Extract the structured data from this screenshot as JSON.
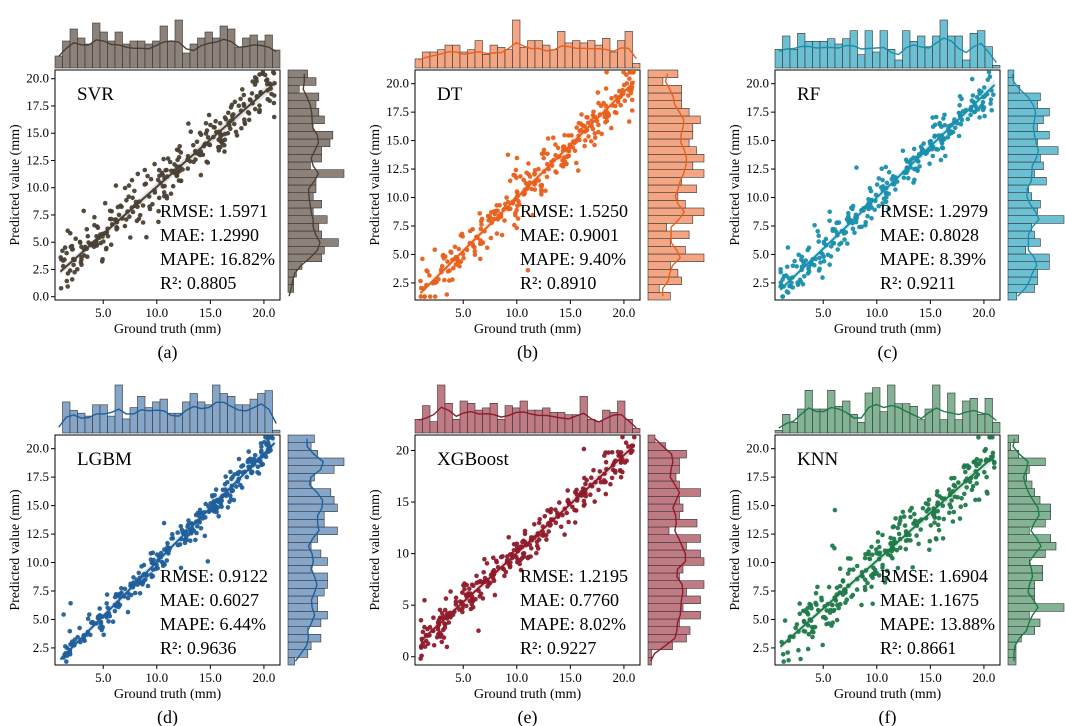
{
  "chart_data": [
    {
      "type": "scatter",
      "panel_label": "(a)",
      "title": "SVR",
      "xlabel": "Ground truth (mm)",
      "ylabel": "Predicted value (mm)",
      "xlim": [
        0.5,
        21.5
      ],
      "ylim": [
        -0.3,
        20.8
      ],
      "xticks": [
        "5.0",
        "10.0",
        "15.0",
        "20.0"
      ],
      "yticks": [
        "0.0",
        "2.5",
        "5.0",
        "7.5",
        "10.0",
        "12.5",
        "15.0",
        "17.5",
        "20.0"
      ],
      "color": "#4a4034",
      "hist_color": "#8c8279",
      "fit_line": {
        "x": [
          1,
          21
        ],
        "y": [
          2.3,
          19.6
        ]
      },
      "metrics": [
        "RMSE: 1.5971",
        "MAE: 1.2990",
        "MAPE: 16.82%",
        "R²: 0.8805"
      ]
    },
    {
      "type": "scatter",
      "panel_label": "(b)",
      "title": "DT",
      "xlabel": "Ground truth (mm)",
      "ylabel": "Predicted value (mm)",
      "xlim": [
        0.5,
        21.5
      ],
      "ylim": [
        1.0,
        21.2
      ],
      "xticks": [
        "5.0",
        "10.0",
        "15.0",
        "20.0"
      ],
      "yticks": [
        "2.5",
        "5.0",
        "7.5",
        "10.0",
        "12.5",
        "15.0",
        "17.5",
        "20.0"
      ],
      "color": "#e8601c",
      "hist_color": "#f4a582",
      "fit_line": {
        "x": [
          1,
          21
        ],
        "y": [
          1.6,
          20.2
        ]
      },
      "metrics": [
        "RMSE: 1.5250",
        "MAE: 0.9001",
        "MAPE: 9.40%",
        "R²: 0.8910"
      ]
    },
    {
      "type": "scatter",
      "panel_label": "(c)",
      "title": "RF",
      "xlabel": "Ground truth (mm)",
      "ylabel": "Predicted value (mm)",
      "xlim": [
        0.5,
        21.5
      ],
      "ylim": [
        1.0,
        21.2
      ],
      "xticks": [
        "5.0",
        "10.0",
        "15.0",
        "20.0"
      ],
      "yticks": [
        "2.5",
        "5.0",
        "7.5",
        "10.0",
        "12.5",
        "15.0",
        "17.5",
        "20.0"
      ],
      "color": "#1a8fad",
      "hist_color": "#6cc0d4",
      "fit_line": {
        "x": [
          1,
          21
        ],
        "y": [
          1.9,
          19.9
        ]
      },
      "metrics": [
        "RMSE: 1.2979",
        "MAE: 0.8028",
        "MAPE: 8.39%",
        "R²: 0.9211"
      ]
    },
    {
      "type": "scatter",
      "panel_label": "(d)",
      "title": "LGBM",
      "xlabel": "Ground truth (mm)",
      "ylabel": "Predicted value (mm)",
      "xlim": [
        0.5,
        21.5
      ],
      "ylim": [
        1.0,
        21.2
      ],
      "xticks": [
        "5.0",
        "10.0",
        "15.0",
        "20.0"
      ],
      "yticks": [
        "2.5",
        "5.0",
        "7.5",
        "10.0",
        "12.5",
        "15.0",
        "17.5",
        "20.0"
      ],
      "color": "#1f5f9a",
      "hist_color": "#85a6c9",
      "fit_line": {
        "x": [
          1,
          21
        ],
        "y": [
          1.5,
          20.5
        ]
      },
      "metrics": [
        "RMSE: 0.9122",
        "MAE: 0.6027",
        "MAPE: 6.44%",
        "R²: 0.9636"
      ]
    },
    {
      "type": "scatter",
      "panel_label": "(e)",
      "title": "XGBoost",
      "xlabel": "Ground truth (mm)",
      "ylabel": "Predicted value (mm)",
      "xlim": [
        0.5,
        21.5
      ],
      "ylim": [
        -0.8,
        21.5
      ],
      "xticks": [
        "5.0",
        "10.0",
        "15.0",
        "20.0"
      ],
      "yticks": [
        "0",
        "5",
        "10",
        "15",
        "20"
      ],
      "color": "#8e1b2b",
      "hist_color": "#c07a84",
      "fit_line": {
        "x": [
          1,
          21
        ],
        "y": [
          1.5,
          20.5
        ]
      },
      "metrics": [
        "RMSE: 1.2195",
        "MAE: 0.7760",
        "MAPE: 8.02%",
        "R²: 0.9227"
      ]
    },
    {
      "type": "scatter",
      "panel_label": "(f)",
      "title": "KNN",
      "xlabel": "Ground truth (mm)",
      "ylabel": "Predicted value (mm)",
      "xlim": [
        0.5,
        21.5
      ],
      "ylim": [
        1.0,
        21.2
      ],
      "xticks": [
        "5.0",
        "10.0",
        "15.0",
        "20.0"
      ],
      "yticks": [
        "2.5",
        "5.0",
        "7.5",
        "10.0",
        "12.5",
        "15.0",
        "17.5",
        "20.0"
      ],
      "color": "#1f7a4a",
      "hist_color": "#82b394",
      "fit_line": {
        "x": [
          1,
          21
        ],
        "y": [
          2.6,
          19.4
        ]
      },
      "metrics": [
        "RMSE: 1.6904",
        "MAE: 1.1675",
        "MAPE: 13.88%",
        "R²: 0.8661"
      ]
    }
  ]
}
